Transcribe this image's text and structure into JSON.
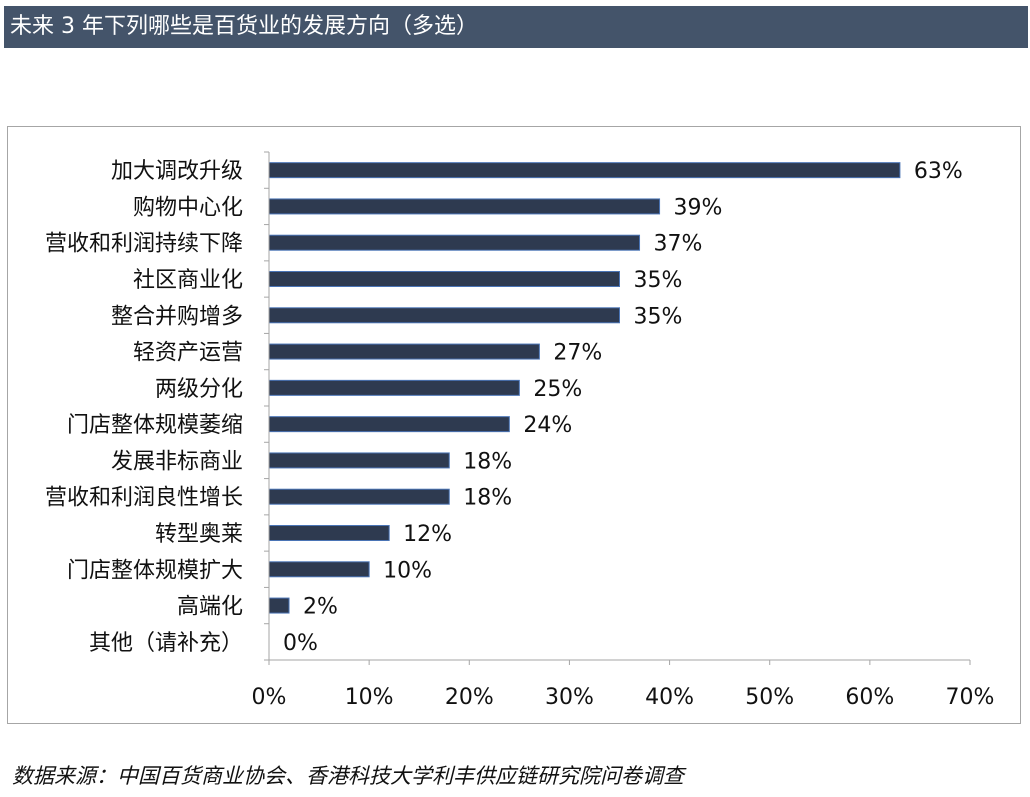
{
  "header": {
    "title": "未来 3 年下列哪些是百货业的发展方向（多选）"
  },
  "footer": {
    "source": "数据来源：中国百货商业协会、香港科技大学利丰供应链研究院问卷调查"
  },
  "chart_data": {
    "type": "bar",
    "orientation": "horizontal",
    "categories": [
      "加大调改升级",
      "购物中心化",
      "营收和利润持续下降",
      "社区商业化",
      "整合并购增多",
      "轻资产运营",
      "两级分化",
      "门店整体规模萎缩",
      "发展非标商业",
      "营收和利润良性增长",
      "转型奥莱",
      "门店整体规模扩大",
      "高端化",
      "其他（请补充）"
    ],
    "values": [
      63,
      39,
      37,
      35,
      35,
      27,
      25,
      24,
      18,
      18,
      12,
      10,
      2,
      0
    ],
    "data_labels": [
      "63%",
      "39%",
      "37%",
      "35%",
      "35%",
      "27%",
      "25%",
      "24%",
      "18%",
      "18%",
      "12%",
      "10%",
      "2%",
      "0%"
    ],
    "x_ticks": [
      0,
      10,
      20,
      30,
      40,
      50,
      60,
      70
    ],
    "x_tick_labels": [
      "0%",
      "10%",
      "20%",
      "30%",
      "40%",
      "50%",
      "60%",
      "70%"
    ],
    "xlim": [
      0,
      70
    ],
    "grid": false,
    "legend": "none",
    "bar_color": "#2e3a50",
    "bar_edge_color": "#4a74b5"
  }
}
